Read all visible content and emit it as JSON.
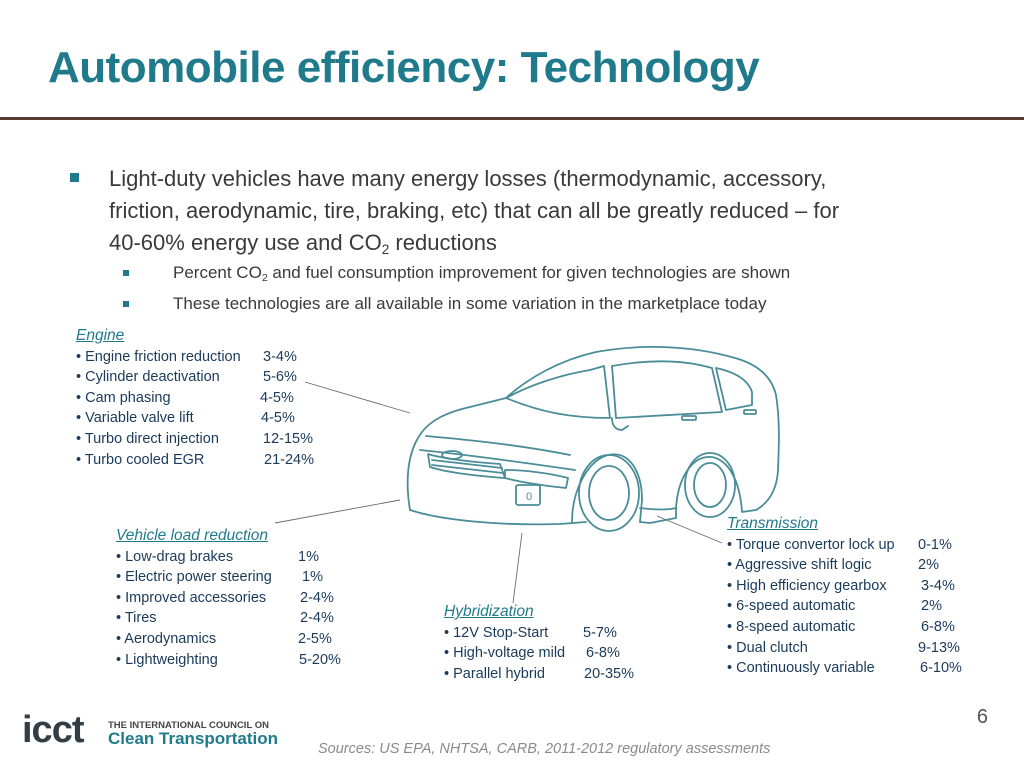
{
  "title": "Automobile efficiency: Technology",
  "bullets": {
    "main": {
      "line1": "Light-duty vehicles have many energy losses (thermodynamic, accessory,",
      "line2": "friction, aerodynamic, tire, braking, etc) that can all be greatly reduced – for",
      "line3_pre": "40-60% energy use and CO",
      "line3_sub": "2",
      "line3_post": " reductions"
    },
    "sub1_pre": "Percent CO",
    "sub1_sub": "2",
    "sub1_post": " and fuel consumption improvement for given technologies are shown",
    "sub2": "These technologies are all available in some variation in the marketplace today"
  },
  "groups": {
    "engine": {
      "heading": "Engine",
      "items": [
        {
          "name": "• Engine friction reduction",
          "pct": "3-4%"
        },
        {
          "name": "• Cylinder deactivation",
          "pct": "5-6%"
        },
        {
          "name": "• Cam phasing",
          "pct": "4-5%"
        },
        {
          "name": "• Variable valve lift",
          "pct": "4-5%"
        },
        {
          "name": "• Turbo direct injection",
          "pct": "12-15%"
        },
        {
          "name": "• Turbo cooled EGR",
          "pct": "21-24%"
        }
      ]
    },
    "vehicle_load": {
      "heading": "Vehicle load reduction",
      "items": [
        {
          "name": "• Low-drag brakes",
          "pct": "1%"
        },
        {
          "name": "• Electric power steering",
          "pct": "1%"
        },
        {
          "name": "• Improved accessories",
          "pct": "2-4%"
        },
        {
          "name": "• Tires",
          "pct": "2-4%"
        },
        {
          "name": "• Aerodynamics",
          "pct": "2-5%"
        },
        {
          "name": "• Lightweighting",
          "pct": "5-20%"
        }
      ]
    },
    "hybridization": {
      "heading": "Hybridization",
      "items": [
        {
          "name": "• 12V Stop-Start",
          "pct": "5-7%"
        },
        {
          "name": "• High-voltage mild",
          "pct": "6-8%"
        },
        {
          "name": "• Parallel hybrid",
          "pct": "20-35%"
        }
      ]
    },
    "transmission": {
      "heading": "Transmission",
      "items": [
        {
          "name": "• Torque convertor lock up",
          "pct": "0-1%"
        },
        {
          "name": "• Aggressive shift logic",
          "pct": "2%"
        },
        {
          "name": "• High efficiency gearbox",
          "pct": "3-4%"
        },
        {
          "name": "• 6-speed automatic",
          "pct": "2%"
        },
        {
          "name": "• 8-speed automatic",
          "pct": "6-8%"
        },
        {
          "name": "• Dual clutch",
          "pct": "9-13%"
        },
        {
          "name": "• Continuously variable",
          "pct": "6-10%"
        }
      ]
    }
  },
  "page_number": "6",
  "sources": "Sources: US EPA, NHTSA, CARB, 2011-2012 regulatory assessments",
  "logo": {
    "mark": "icct",
    "line1": "THE INTERNATIONAL COUNCIL ON",
    "line2": "Clean Transportation"
  },
  "car_plate": "0",
  "colors": {
    "accent": "#1f7a8c",
    "rule": "#5a3a2e",
    "car_line": "#4a8d98"
  }
}
